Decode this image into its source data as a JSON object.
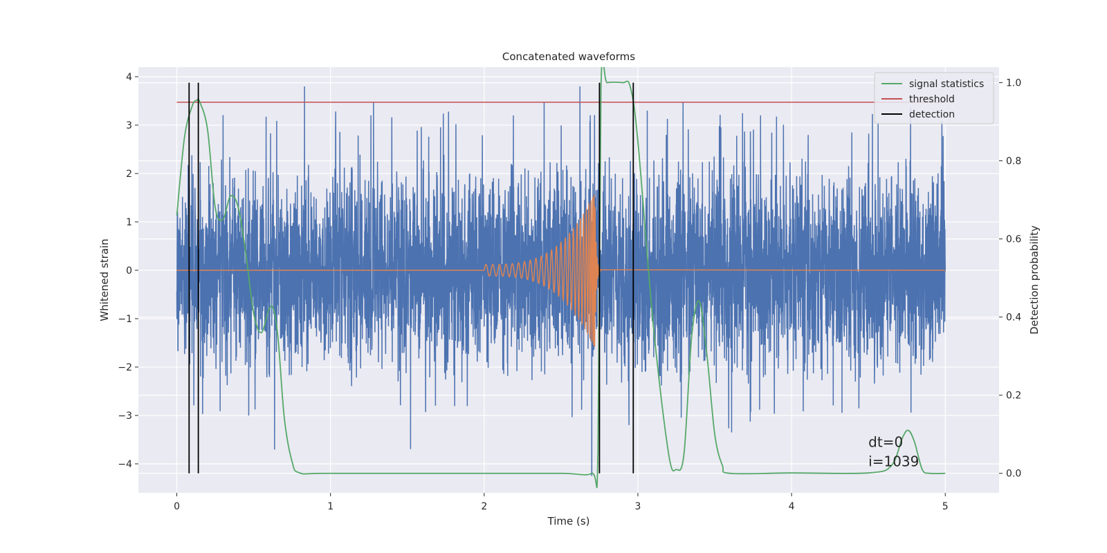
{
  "chart_data": {
    "type": "line",
    "title": "Concatenated waveforms",
    "xlabel": "Time (s)",
    "ylabel_left": "Whitened strain",
    "ylabel_right": "Detection probability",
    "xlim": [
      -0.25,
      5.35
    ],
    "ylim_left": [
      -4.6,
      4.2
    ],
    "ylim_right": [
      -0.05,
      1.04
    ],
    "x_ticks": [
      0,
      1,
      2,
      3,
      4,
      5
    ],
    "x_tick_labels": [
      "0",
      "1",
      "2",
      "3",
      "4",
      "5"
    ],
    "y_left_ticks": [
      -4,
      -3,
      -2,
      -1,
      0,
      1,
      2,
      3,
      4
    ],
    "y_left_tick_labels": [
      "−4",
      "−3",
      "−2",
      "−1",
      "0",
      "1",
      "2",
      "3",
      "4"
    ],
    "y_right_ticks": [
      0.0,
      0.2,
      0.4,
      0.6,
      0.8,
      1.0
    ],
    "y_right_tick_labels": [
      "0.0",
      "0.2",
      "0.4",
      "0.6",
      "0.8",
      "1.0"
    ],
    "grid": true,
    "legend_position": "top-right",
    "legend": [
      {
        "label": "signal statistics",
        "color": "#55a868"
      },
      {
        "label": "threshold",
        "color": "#c44e52"
      },
      {
        "label": "detection",
        "color": "#000000"
      }
    ],
    "colors": {
      "noise": "#4c72b0",
      "chirp": "#dd8452",
      "statistics": "#55a868",
      "threshold": "#c44e52",
      "detection": "#000000",
      "axes_bg": "#eaeaf2",
      "grid": "#ffffff"
    },
    "noise": {
      "x_range": [
        0,
        5
      ],
      "typical_amplitude": 1.0,
      "min": -4.25,
      "max": 3.8
    },
    "chirp": {
      "x_range": [
        2.0,
        2.76
      ],
      "amplitude_start": 0.12,
      "amplitude_peak": 1.6,
      "peak_time": 2.72
    },
    "threshold": {
      "value": 0.95,
      "x_range": [
        0,
        5
      ]
    },
    "detections": [
      0.08,
      0.14,
      2.75,
      2.97
    ],
    "detection_y_range": [
      0.0,
      1.0
    ],
    "signal_statistics": {
      "x": [
        0.0,
        0.05,
        0.1,
        0.13,
        0.15,
        0.2,
        0.25,
        0.3,
        0.35,
        0.4,
        0.45,
        0.5,
        0.55,
        0.6,
        0.63,
        0.66,
        0.7,
        0.75,
        0.8,
        1.0,
        2.0,
        2.5,
        2.7,
        2.74,
        2.76,
        2.8,
        2.9,
        2.95,
        3.0,
        3.1,
        3.2,
        3.25,
        3.3,
        3.35,
        3.4,
        3.45,
        3.5,
        3.55,
        3.6,
        4.0,
        4.5,
        4.65,
        4.72,
        4.76,
        4.8,
        4.85,
        4.9,
        5.0
      ],
      "y": [
        0.66,
        0.86,
        0.94,
        0.955,
        0.95,
        0.88,
        0.68,
        0.65,
        0.71,
        0.68,
        0.56,
        0.41,
        0.36,
        0.42,
        0.42,
        0.34,
        0.14,
        0.03,
        0.001,
        0.0,
        0.0,
        0.0,
        0.0,
        0.05,
        0.99,
        1.0,
        1.0,
        0.99,
        0.85,
        0.38,
        0.05,
        0.01,
        0.05,
        0.35,
        0.44,
        0.3,
        0.1,
        0.02,
        0.0,
        0.001,
        0.001,
        0.02,
        0.09,
        0.11,
        0.08,
        0.01,
        0.0,
        0.0
      ]
    },
    "annotations": [
      "dt=0",
      "i=1039"
    ]
  }
}
